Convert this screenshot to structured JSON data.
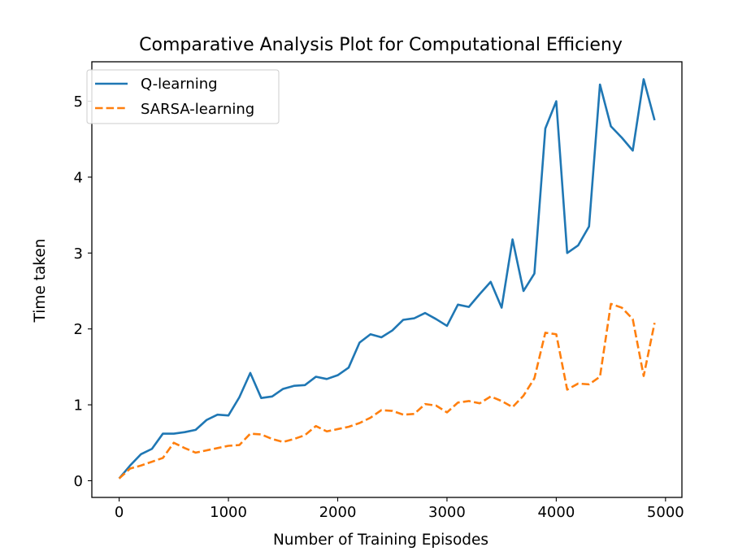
{
  "chart_data": {
    "type": "line",
    "title": "Comparative Analysis Plot for Computational Efficieny",
    "xlabel": "Number of Training Episodes",
    "ylabel": "Time taken",
    "xlim": [
      -250,
      5150
    ],
    "ylim": [
      -0.22,
      5.52
    ],
    "xticks": [
      0,
      1000,
      2000,
      3000,
      4000,
      5000
    ],
    "yticks": [
      0,
      1,
      2,
      3,
      4,
      5
    ],
    "xtick_labels": [
      "0",
      "1000",
      "2000",
      "3000",
      "4000",
      "5000"
    ],
    "ytick_labels": [
      "0",
      "1",
      "2",
      "3",
      "4",
      "5"
    ],
    "legend_position": "upper-left",
    "grid": false,
    "x": [
      0,
      100,
      200,
      300,
      400,
      500,
      600,
      700,
      800,
      900,
      1000,
      1100,
      1200,
      1300,
      1400,
      1500,
      1600,
      1700,
      1800,
      1900,
      2000,
      2100,
      2200,
      2300,
      2400,
      2500,
      2600,
      2700,
      2800,
      2900,
      3000,
      3100,
      3200,
      3300,
      3400,
      3500,
      3600,
      3700,
      3800,
      3900,
      4000,
      4100,
      4200,
      4300,
      4400,
      4500,
      4600,
      4700,
      4800,
      4900
    ],
    "series": [
      {
        "name": "Q-learning",
        "color": "#1f77b4",
        "style": "solid",
        "values": [
          0.03,
          0.2,
          0.35,
          0.42,
          0.62,
          0.62,
          0.64,
          0.67,
          0.8,
          0.87,
          0.86,
          1.1,
          1.42,
          1.09,
          1.11,
          1.21,
          1.25,
          1.26,
          1.37,
          1.34,
          1.39,
          1.49,
          1.82,
          1.93,
          1.89,
          1.98,
          2.12,
          2.14,
          2.21,
          2.13,
          2.04,
          2.32,
          2.29,
          2.46,
          2.62,
          2.28,
          3.18,
          2.5,
          2.73,
          4.64,
          5.0,
          3.0,
          3.1,
          3.35,
          5.22,
          4.67,
          4.52,
          4.35,
          5.29,
          4.75
        ]
      },
      {
        "name": "SARSA-learning",
        "color": "#ff7f0e",
        "style": "dashed",
        "values": [
          0.03,
          0.16,
          0.2,
          0.25,
          0.3,
          0.5,
          0.43,
          0.37,
          0.4,
          0.43,
          0.46,
          0.47,
          0.62,
          0.61,
          0.55,
          0.51,
          0.55,
          0.6,
          0.72,
          0.65,
          0.68,
          0.71,
          0.76,
          0.83,
          0.93,
          0.92,
          0.87,
          0.88,
          1.01,
          0.99,
          0.9,
          1.03,
          1.05,
          1.02,
          1.11,
          1.05,
          0.97,
          1.12,
          1.35,
          1.95,
          1.93,
          1.2,
          1.28,
          1.27,
          1.37,
          2.33,
          2.28,
          2.13,
          1.38,
          2.08
        ]
      }
    ]
  }
}
